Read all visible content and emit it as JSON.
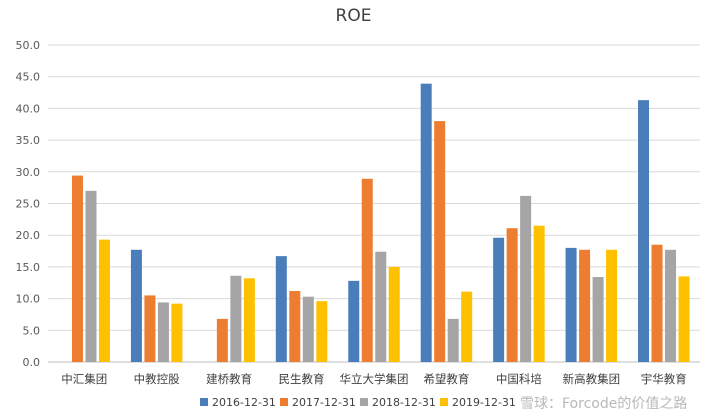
{
  "chart_data": {
    "type": "bar",
    "title": "ROE",
    "xlabel": "",
    "ylabel": "",
    "ylim": [
      0,
      50
    ],
    "ytick_labels": [
      "0.0",
      "5.0",
      "10.0",
      "15.0",
      "20.0",
      "25.0",
      "30.0",
      "35.0",
      "40.0",
      "45.0",
      "50.0"
    ],
    "grid": true,
    "legend_position": "bottom",
    "categories": [
      "中汇集团",
      "中教控股",
      "建桥教育",
      "民生教育",
      "华立大学集团",
      "希望教育",
      "中国科培",
      "新高教集团",
      "宇华教育"
    ],
    "series": [
      {
        "name": "2016-12-31",
        "color": "#4a7ebb",
        "values": [
          null,
          17.7,
          null,
          16.7,
          12.8,
          43.9,
          19.6,
          18.0,
          41.3
        ]
      },
      {
        "name": "2017-12-31",
        "color": "#ed7d31",
        "values": [
          29.4,
          10.5,
          6.8,
          11.2,
          28.9,
          38.0,
          21.1,
          17.7,
          18.5
        ]
      },
      {
        "name": "2018-12-31",
        "color": "#a5a5a5",
        "values": [
          27.0,
          9.4,
          13.6,
          10.3,
          17.4,
          6.8,
          26.2,
          13.4,
          17.7
        ]
      },
      {
        "name": "2019-12-31",
        "color": "#ffc000",
        "values": [
          19.3,
          9.2,
          13.2,
          9.6,
          15.0,
          11.1,
          21.5,
          17.7,
          13.5
        ]
      }
    ]
  },
  "watermark": "雪球：Forcode的价值之路"
}
